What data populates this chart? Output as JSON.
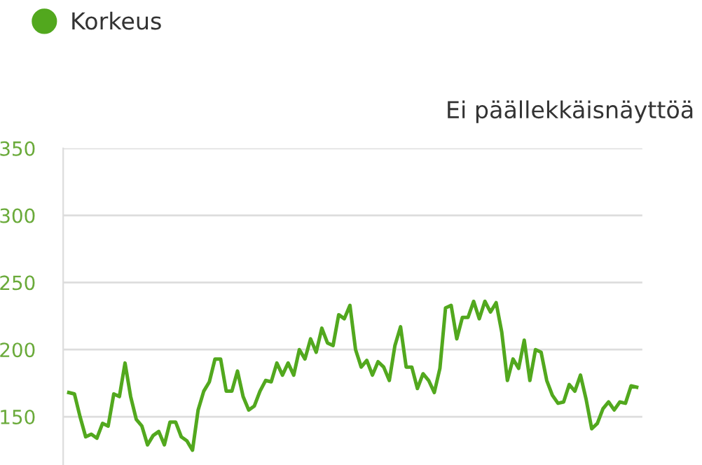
{
  "chart_data": {
    "type": "line",
    "title": "Ei päällekkäisnäyttöä",
    "categories": [
      null,
      null,
      null,
      null,
      null,
      null,
      null,
      null,
      null,
      null,
      null,
      null,
      null,
      null,
      null,
      null,
      null,
      null,
      null,
      null,
      null,
      null,
      null,
      null,
      null,
      null,
      null,
      null,
      null,
      null,
      null,
      null,
      null,
      null,
      null,
      null,
      null,
      null,
      null,
      null,
      null,
      null,
      null,
      null,
      null,
      null,
      null,
      null,
      null,
      null,
      null,
      null,
      null,
      null,
      null,
      null,
      null,
      null,
      null,
      null,
      null,
      null,
      null,
      null,
      null,
      null,
      null,
      null,
      null,
      null,
      null,
      null,
      null,
      null,
      null,
      null,
      null,
      null,
      null,
      null,
      null,
      null,
      null,
      null,
      null,
      null,
      null,
      null,
      null,
      null,
      null,
      null,
      null,
      null,
      null,
      null,
      null,
      null,
      null,
      null,
      null,
      null
    ],
    "series": [
      {
        "name": "Korkeus",
        "color": "#52a81e",
        "values": [
          168,
          167,
          150,
          135,
          137,
          134,
          145,
          143,
          167,
          165,
          190,
          165,
          148,
          143,
          129,
          136,
          139,
          129,
          146,
          146,
          135,
          132,
          125,
          155,
          169,
          176,
          193,
          193,
          169,
          169,
          184,
          165,
          155,
          158,
          169,
          177,
          176,
          190,
          181,
          190,
          181,
          200,
          193,
          208,
          198,
          216,
          205,
          203,
          226,
          223,
          233,
          200,
          187,
          192,
          181,
          191,
          187,
          177,
          203,
          217,
          187,
          187,
          171,
          182,
          177,
          168,
          186,
          231,
          233,
          208,
          224,
          224,
          236,
          223,
          236,
          228,
          235,
          213,
          177,
          193,
          186,
          207,
          177,
          200,
          198,
          177,
          166,
          160,
          161,
          174,
          169,
          181,
          163,
          141,
          145,
          156,
          161,
          155,
          161,
          160,
          173,
          172
        ]
      }
    ],
    "ylim": [
      114,
      350
    ],
    "yticks": [
      150,
      200,
      250,
      300,
      350
    ],
    "grid": "y",
    "legend": "top left",
    "tick_labels": "y",
    "marker": "none",
    "line_style": "solid"
  }
}
